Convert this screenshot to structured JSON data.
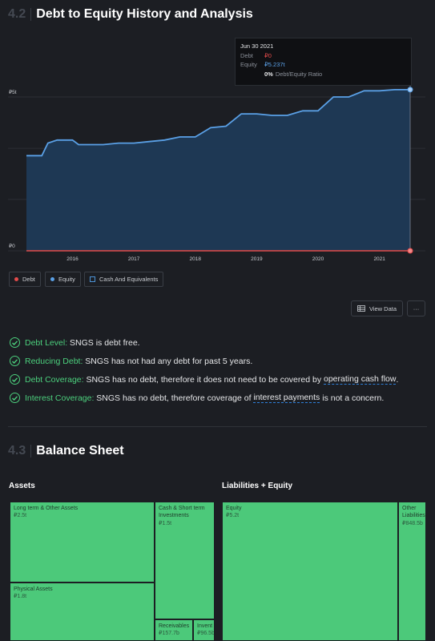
{
  "section_42": {
    "number": "4.2",
    "title": "Debt to Equity History and Analysis"
  },
  "tooltip": {
    "date": "Jun 30 2021",
    "debt_label": "Debt",
    "debt_value": "₽0",
    "equity_label": "Equity",
    "equity_value": "₽5.237t",
    "ratio_value": "0%",
    "ratio_label": "Debt/Equity Ratio"
  },
  "colors": {
    "debt": "#e34b4b",
    "equity": "#5aa0e6",
    "cash": "#4c93d6",
    "positive": "#4cd07d",
    "treemap": "#4cc97a"
  },
  "chart_data": {
    "type": "area",
    "y_tick_labels": [
      "₽5t",
      "₽0"
    ],
    "x_tick_labels": [
      "2016",
      "2017",
      "2018",
      "2019",
      "2020",
      "2021"
    ],
    "ylim": [
      0,
      5
    ],
    "xlim": [
      2015.25,
      2021.5
    ],
    "series": [
      {
        "name": "Equity",
        "x": [
          2015.25,
          2015.5,
          2015.6,
          2015.75,
          2016.0,
          2016.1,
          2016.25,
          2016.5,
          2016.75,
          2017.0,
          2017.25,
          2017.5,
          2017.75,
          2018.0,
          2018.25,
          2018.5,
          2018.75,
          2019.0,
          2019.25,
          2019.5,
          2019.75,
          2020.0,
          2020.25,
          2020.5,
          2020.75,
          2021.0,
          2021.25,
          2021.5
        ],
        "y": [
          3.09,
          3.09,
          3.5,
          3.6,
          3.6,
          3.45,
          3.45,
          3.45,
          3.5,
          3.5,
          3.55,
          3.6,
          3.7,
          3.7,
          4.0,
          4.05,
          4.45,
          4.45,
          4.4,
          4.4,
          4.55,
          4.55,
          5.0,
          5.0,
          5.2,
          5.2,
          5.237,
          5.237
        ]
      },
      {
        "name": "Debt",
        "x": [
          2015.25,
          2021.5
        ],
        "y": [
          0,
          0
        ]
      }
    ],
    "legend": [
      {
        "name": "Debt",
        "color": "#e34b4b"
      },
      {
        "name": "Equity",
        "color": "#5aa0e6"
      },
      {
        "name": "Cash And Equivalents",
        "color": "#4c93d6"
      }
    ]
  },
  "legend": {
    "debt": "Debt",
    "equity": "Equity",
    "cash": "Cash And Equivalents"
  },
  "buttons": {
    "view_data": "View Data",
    "more": "···"
  },
  "checks": [
    {
      "key": "Debt Level:",
      "pre": " SNGS is debt free.",
      "link": "",
      "post": ""
    },
    {
      "key": "Reducing Debt:",
      "pre": " SNGS has not had any debt for past 5 years.",
      "link": "",
      "post": ""
    },
    {
      "key": "Debt Coverage:",
      "pre": " SNGS has no debt, therefore it does not need to be covered by ",
      "link": "operating cash flow",
      "post": "."
    },
    {
      "key": "Interest Coverage:",
      "pre": " SNGS has no debt, therefore coverage of ",
      "link": "interest payments",
      "post": " is not a concern."
    }
  ],
  "section_43": {
    "number": "4.3",
    "title": "Balance Sheet"
  },
  "assets": {
    "heading": "Assets",
    "items": [
      {
        "label": "Long term & Other Assets",
        "value": "₽2.5t"
      },
      {
        "label": "Physical Assets",
        "value": "₽1.8t"
      },
      {
        "label": "Cash & Short term Investments",
        "value": "₽1.5t"
      },
      {
        "label": "Receivables",
        "value": "₽157.7b"
      },
      {
        "label": "Invent",
        "value": "₽96.5b"
      }
    ]
  },
  "liabilities": {
    "heading": "Liabilities + Equity",
    "items": [
      {
        "label": "Equity",
        "value": "₽5.2t"
      },
      {
        "label": "Other Liabilities",
        "value": "₽848.5b"
      }
    ]
  }
}
